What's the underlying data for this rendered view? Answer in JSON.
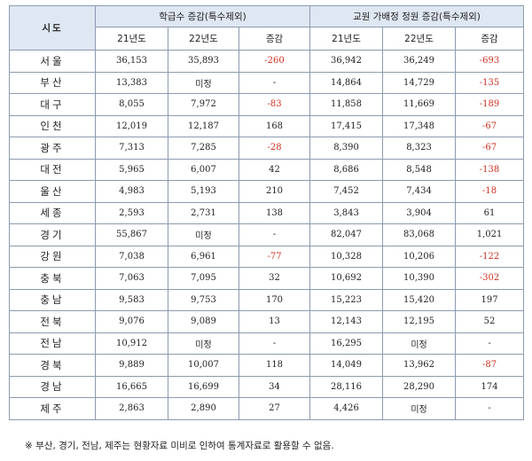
{
  "table": {
    "region_header": "시도",
    "group1_header": "학급수 증감(특수제외)",
    "group2_header": "교원 가배정 정원 증감(특수제외)",
    "subheaders": [
      "21년도",
      "22년도",
      "증감",
      "21년도",
      "22년도",
      "증감"
    ],
    "rows": [
      [
        "서울",
        "36,153",
        "35,893",
        "-260",
        "36,942",
        "36,249",
        "-693"
      ],
      [
        "부산",
        "13,383",
        "미정",
        "-",
        "14,864",
        "14,729",
        "-135"
      ],
      [
        "대구",
        "8,055",
        "7,972",
        "-83",
        "11,858",
        "11,669",
        "-189"
      ],
      [
        "인천",
        "12,019",
        "12,187",
        "168",
        "17,415",
        "17,348",
        "-67"
      ],
      [
        "광주",
        "7,313",
        "7,285",
        "-28",
        "8,390",
        "8,323",
        "-67"
      ],
      [
        "대전",
        "5,965",
        "6,007",
        "42",
        "8,686",
        "8,548",
        "-138"
      ],
      [
        "울산",
        "4,983",
        "5,193",
        "210",
        "7,452",
        "7,434",
        "-18"
      ],
      [
        "세종",
        "2,593",
        "2,731",
        "138",
        "3,843",
        "3,904",
        "61"
      ],
      [
        "경기",
        "55,867",
        "미정",
        "-",
        "82,047",
        "83,068",
        "1,021"
      ],
      [
        "강원",
        "7,038",
        "6,961",
        "-77",
        "10,328",
        "10,206",
        "-122"
      ],
      [
        "충북",
        "7,063",
        "7,095",
        "32",
        "10,692",
        "10,390",
        "-302"
      ],
      [
        "충남",
        "9,583",
        "9,753",
        "170",
        "15,223",
        "15,420",
        "197"
      ],
      [
        "전북",
        "9,076",
        "9,089",
        "13",
        "12,143",
        "12,195",
        "52"
      ],
      [
        "전남",
        "10,912",
        "미정",
        "-",
        "16,295",
        "미정",
        "-"
      ],
      [
        "경북",
        "9,889",
        "10,007",
        "118",
        "14,049",
        "13,962",
        "-87"
      ],
      [
        "경남",
        "16,665",
        "16,699",
        "34",
        "28,116",
        "28,290",
        "174"
      ],
      [
        "제주",
        "2,863",
        "2,890",
        "27",
        "4,426",
        "미정",
        "-"
      ]
    ]
  },
  "note": "※ 부산, 경기, 전남, 제주는 현황자료 미비로 인하여 통계자료로 활용할 수 없음.",
  "colors": {
    "header_bg": "#dfe7f3",
    "negative": "#d03020",
    "border": "#8c9bb0"
  }
}
